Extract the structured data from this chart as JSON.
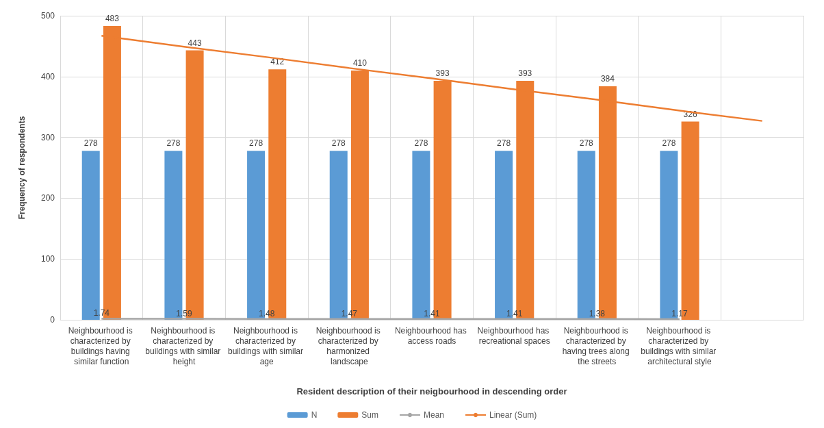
{
  "chart_data": {
    "type": "bar",
    "xlabel": "Resident description of their neigbourhood in descending order",
    "ylabel": "Frequency of respondents",
    "categories": [
      "Neighbourhood is characterized by buildings having similar function",
      "Neighbourhood is characterized by buildings with similar height",
      "Neighbourhood is characterized by buildings with similar age",
      "Neighbourhood is characterized by harmonized landscape",
      "Neighbourhood has access roads",
      "Neighbourhood has recreational spaces",
      "Neighbourhood is characterized by having trees along the streets",
      "Neighbourhood is characterized by buildings with similar architectural style",
      null
    ],
    "series": [
      {
        "name": "N",
        "color": "#5b9bd5",
        "values": [
          278,
          278,
          278,
          278,
          278,
          278,
          278,
          278,
          null
        ],
        "value_labels": [
          "278",
          "278",
          "278",
          "278",
          "278",
          "278",
          "278",
          "278",
          null
        ]
      },
      {
        "name": "Sum",
        "color": "#ed7d31",
        "values": [
          483,
          443,
          412,
          410,
          393,
          393,
          384,
          326,
          null
        ],
        "value_labels": [
          "483",
          "443",
          "412",
          "410",
          "393",
          "393",
          "384",
          "326",
          null
        ]
      },
      {
        "name": "Mean",
        "type": "line",
        "color": "#a5a5a5",
        "values": [
          1.74,
          1.59,
          1.48,
          1.47,
          1.41,
          1.41,
          1.38,
          1.17,
          null
        ],
        "value_labels": [
          "1.74",
          "1.59",
          "1.48",
          "1.47",
          "1.41",
          "1.41",
          "1.38",
          "1.17",
          null
        ]
      },
      {
        "name": "Linear (Sum)",
        "type": "line",
        "color": "#ed7d31",
        "values": [
          467,
          449,
          432,
          414,
          397,
          379,
          362,
          344,
          327
        ]
      }
    ],
    "ylim": [
      0,
      500
    ],
    "yticks": [
      0,
      100,
      200,
      300,
      400,
      500
    ],
    "grid": true,
    "legend": "bottom",
    "marker": "none"
  }
}
